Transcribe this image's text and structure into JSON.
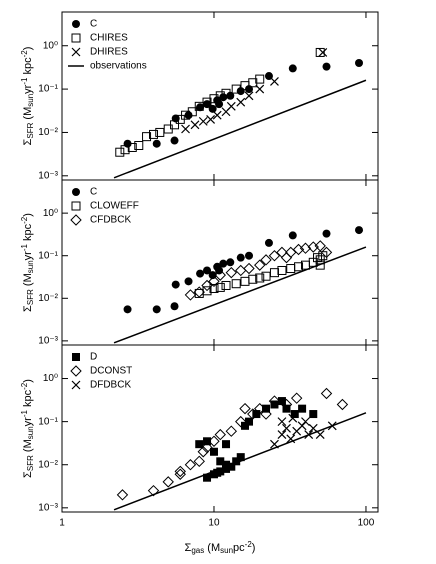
{
  "chart_data": [
    {
      "type": "scatter",
      "xlog": true,
      "ylog": true,
      "xlim": [
        1,
        120
      ],
      "ylim": [
        0.0008,
        6
      ],
      "xticks": [
        1,
        10,
        100
      ],
      "yticks": [
        {
          "value": 0.001,
          "label": "10⁻³"
        },
        {
          "value": 0.01,
          "label": "10⁻²"
        },
        {
          "value": 0.1,
          "label": "10⁻¹"
        },
        {
          "value": 1,
          "label": "10⁰"
        }
      ],
      "ylabel": [
        "Σ",
        "SFR",
        " (M",
        "sun",
        "yr",
        "-1",
        " kpc",
        "-2",
        ")"
      ],
      "legend": "top-left",
      "series": [
        {
          "name": "C",
          "marker": "circle",
          "color": "#000000",
          "x": [
            2.7,
            4.2,
            5.5,
            5.6,
            6.8,
            8.1,
            9.0,
            9.8,
            10.5,
            10.8,
            11.5,
            12.8,
            15,
            17,
            23,
            33,
            55,
            90
          ],
          "values": [
            0.0055,
            0.0055,
            0.0065,
            0.021,
            0.025,
            0.038,
            0.045,
            0.035,
            0.055,
            0.045,
            0.065,
            0.07,
            0.09,
            0.1,
            0.2,
            0.3,
            0.33,
            0.4
          ]
        },
        {
          "name": "CHIRES",
          "marker": "square",
          "color": "#000000",
          "x": [
            2.4,
            2.6,
            2.9,
            3.2,
            3.6,
            4.0,
            4.4,
            5.0,
            5.5,
            6.0,
            6.5,
            7.2,
            8.0,
            9.0,
            10,
            11,
            12,
            14,
            16,
            18,
            20,
            50
          ],
          "values": [
            0.0035,
            0.004,
            0.0045,
            0.005,
            0.008,
            0.009,
            0.01,
            0.012,
            0.015,
            0.02,
            0.025,
            0.03,
            0.04,
            0.05,
            0.06,
            0.07,
            0.08,
            0.1,
            0.12,
            0.14,
            0.17,
            0.7
          ]
        },
        {
          "name": "DHIRES",
          "marker": "cross",
          "color": "#000000",
          "x": [
            6.5,
            7.5,
            8.5,
            9.5,
            10.5,
            12,
            13,
            15,
            17,
            20,
            25,
            52
          ],
          "values": [
            0.012,
            0.015,
            0.018,
            0.02,
            0.025,
            0.03,
            0.04,
            0.05,
            0.07,
            0.1,
            0.15,
            0.7
          ]
        },
        {
          "name": "observations",
          "marker": "line",
          "color": "#000000",
          "x": [
            2.2,
            100
          ],
          "values": [
            0.0009,
            0.16
          ]
        }
      ]
    },
    {
      "type": "scatter",
      "xlog": true,
      "ylog": true,
      "xlim": [
        1,
        120
      ],
      "ylim": [
        0.0008,
        6
      ],
      "xticks": [
        1,
        10,
        100
      ],
      "yticks": [
        {
          "value": 0.001,
          "label": "10⁻³"
        },
        {
          "value": 0.01,
          "label": "10⁻²"
        },
        {
          "value": 0.1,
          "label": "10⁻¹"
        },
        {
          "value": 1,
          "label": "10⁰"
        }
      ],
      "ylabel": [
        "Σ",
        "SFR",
        " (M",
        "sun",
        "yr",
        "-1",
        " kpc",
        "-2",
        ")"
      ],
      "legend": "top-left",
      "series": [
        {
          "name": "C",
          "marker": "circle",
          "color": "#000000",
          "x": [
            2.7,
            4.2,
            5.5,
            5.6,
            6.8,
            8.1,
            9.0,
            9.8,
            10.5,
            10.8,
            11.5,
            12.8,
            15,
            17,
            23,
            33,
            55,
            90
          ],
          "values": [
            0.0055,
            0.0055,
            0.0065,
            0.021,
            0.025,
            0.038,
            0.045,
            0.035,
            0.055,
            0.045,
            0.065,
            0.07,
            0.09,
            0.1,
            0.2,
            0.3,
            0.33,
            0.4
          ]
        },
        {
          "name": "CLOWEFF",
          "marker": "square",
          "color": "#000000",
          "x": [
            8,
            9,
            10,
            11,
            12,
            14,
            16,
            18,
            20,
            22,
            25,
            28,
            32,
            36,
            40,
            45,
            50,
            52,
            50,
            48
          ],
          "values": [
            0.013,
            0.015,
            0.017,
            0.018,
            0.02,
            0.022,
            0.025,
            0.028,
            0.03,
            0.033,
            0.04,
            0.045,
            0.05,
            0.055,
            0.06,
            0.07,
            0.08,
            0.1,
            0.06,
            0.09
          ]
        },
        {
          "name": "CFDBCK",
          "marker": "diamond",
          "color": "#000000",
          "x": [
            7,
            8,
            9,
            10,
            11,
            13,
            15,
            17,
            20,
            22,
            25,
            28,
            32,
            36,
            40,
            45,
            50,
            55,
            30
          ],
          "values": [
            0.012,
            0.014,
            0.02,
            0.025,
            0.035,
            0.04,
            0.045,
            0.05,
            0.06,
            0.08,
            0.1,
            0.12,
            0.12,
            0.14,
            0.15,
            0.16,
            0.17,
            0.12,
            0.09
          ]
        }
      ],
      "line": {
        "color": "#000000",
        "x": [
          2.2,
          100
        ],
        "values": [
          0.0009,
          0.16
        ]
      }
    },
    {
      "type": "scatter",
      "xlog": true,
      "ylog": true,
      "xlim": [
        1,
        120
      ],
      "ylim": [
        0.0008,
        6
      ],
      "xticks": [
        1,
        10,
        100
      ],
      "yticks": [
        {
          "value": 0.001,
          "label": "10⁻³"
        },
        {
          "value": 0.01,
          "label": "10⁻²"
        },
        {
          "value": 0.1,
          "label": "10⁻¹"
        },
        {
          "value": 1,
          "label": "10⁰"
        }
      ],
      "ylabel": [
        "Σ",
        "SFR",
        " (M",
        "sun",
        "yr",
        "-1",
        " kpc",
        "-2",
        ")"
      ],
      "xlabel": [
        "Σ",
        "gas",
        " (M",
        "sun",
        "pc",
        "-2",
        ")"
      ],
      "legend": "top-left",
      "series": [
        {
          "name": "D",
          "marker": "filled-square",
          "color": "#000000",
          "x": [
            9,
            10,
            10.5,
            11,
            12,
            13,
            14,
            15,
            10,
            12,
            8,
            9,
            16,
            17,
            19,
            22,
            25,
            28,
            30,
            34,
            38,
            45,
            12,
            11
          ],
          "values": [
            0.005,
            0.006,
            0.0065,
            0.007,
            0.008,
            0.009,
            0.012,
            0.015,
            0.02,
            0.03,
            0.03,
            0.035,
            0.08,
            0.1,
            0.15,
            0.2,
            0.25,
            0.3,
            0.2,
            0.15,
            0.2,
            0.15,
            0.01,
            0.012
          ]
        },
        {
          "name": "DCONST",
          "marker": "diamond",
          "color": "#000000",
          "x": [
            2.5,
            4,
            5,
            6,
            7,
            8,
            8.5,
            9,
            10,
            11,
            13,
            15,
            18,
            20,
            25,
            30,
            35,
            55,
            70,
            6,
            16,
            22
          ],
          "values": [
            0.002,
            0.0025,
            0.004,
            0.007,
            0.01,
            0.012,
            0.02,
            0.025,
            0.035,
            0.05,
            0.06,
            0.1,
            0.15,
            0.2,
            0.3,
            0.25,
            0.35,
            0.45,
            0.25,
            0.006,
            0.2,
            0.15
          ]
        },
        {
          "name": "DFDBCK",
          "marker": "cross",
          "color": "#000000",
          "x": [
            25,
            28,
            30,
            32,
            35,
            38,
            40,
            42,
            45,
            28,
            33,
            60,
            50
          ],
          "values": [
            0.03,
            0.05,
            0.07,
            0.04,
            0.06,
            0.08,
            0.1,
            0.05,
            0.07,
            0.1,
            0.12,
            0.08,
            0.05
          ]
        }
      ],
      "line": {
        "color": "#000000",
        "x": [
          2.2,
          100
        ],
        "values": [
          0.0009,
          0.16
        ]
      }
    }
  ]
}
